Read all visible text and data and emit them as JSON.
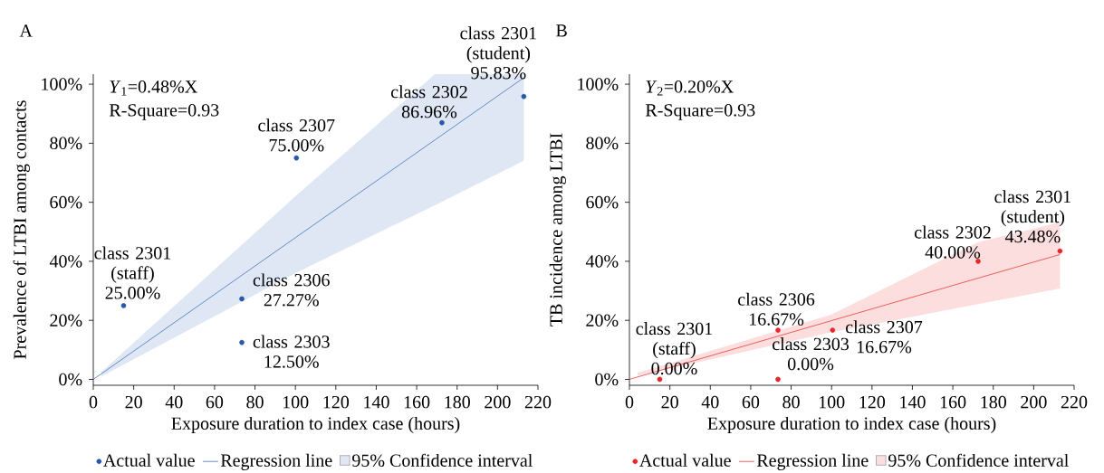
{
  "chart_data": [
    {
      "type": "scatter",
      "title": "A",
      "xlabel": "Exposure duration to index case (hours)",
      "ylabel": "Prevalence of LTBI among contacts",
      "xlim": [
        0,
        220
      ],
      "ylim": [
        -2,
        103.4
      ],
      "xticks": [
        0,
        20,
        40,
        60,
        80,
        100,
        120,
        140,
        160,
        180,
        200,
        220
      ],
      "yticks": [
        {
          "value": 0,
          "label": "0%"
        },
        {
          "value": 20,
          "label": "20%"
        },
        {
          "value": 40,
          "label": "40%"
        },
        {
          "value": 60,
          "label": "60%"
        },
        {
          "value": 80,
          "label": "80%"
        },
        {
          "value": 100,
          "label": "100%"
        }
      ],
      "legend": "bottom",
      "series": [
        {
          "name": "Actual value",
          "marker": "circle",
          "color": "#2a58a6",
          "x": [
            15,
            73.5,
            73.5,
            100.5,
            172.5,
            213
          ],
          "values": [
            25,
            27.27,
            12.5,
            75,
            86.96,
            95.83
          ]
        },
        {
          "name": "Regression line",
          "type": "line",
          "marker": "none",
          "line_style": "solid",
          "color": "#4472c4",
          "x": [
            0,
            4,
            100,
            169,
            213
          ],
          "values": [
            0,
            1.9,
            48,
            81.1,
            102.2
          ],
          "lower": [
            null,
            1,
            36,
            59,
            74.1
          ],
          "upper": [
            null,
            2.5,
            62,
            103.4,
            103.4
          ]
        }
      ],
      "annotations": [
        "*Y*$_{1}$=0.48%X",
        "R-Square=0.93",
        "95% Confidence interval",
        {
          "text": "class 2301 (staff) 25.00%",
          "x": 15,
          "y": 25
        },
        {
          "text": "class 2306 27.27%",
          "x": 73.5,
          "y": 27.27
        },
        {
          "text": "class 2303 12.50%",
          "x": 73.5,
          "y": 12.5
        },
        {
          "text": "class 2307 75.00%",
          "x": 100.5,
          "y": 75
        },
        {
          "text": "class 2302 86.96%",
          "x": 172.5,
          "y": 86.96
        },
        {
          "text": "class 2301 (student) 95.83%",
          "x": 213,
          "y": 95.83
        }
      ]
    },
    {
      "type": "scatter",
      "title": "B",
      "xlabel": "Exposure duration to index case (hours)",
      "ylabel": "TB incidence among LTBI",
      "xlim": [
        0,
        220
      ],
      "ylim": [
        -2,
        103.4
      ],
      "xticks": [
        0,
        20,
        40,
        60,
        80,
        100,
        120,
        140,
        160,
        180,
        200,
        220
      ],
      "yticks": [
        {
          "value": 0,
          "label": "0%"
        },
        {
          "value": 20,
          "label": "20%"
        },
        {
          "value": 40,
          "label": "40%"
        },
        {
          "value": 60,
          "label": "60%"
        },
        {
          "value": 80,
          "label": "80%"
        },
        {
          "value": 100,
          "label": "100%"
        }
      ],
      "legend": "bottom",
      "series": [
        {
          "name": "Actual value",
          "marker": "circle",
          "color": "#e8262a",
          "x": [
            15,
            73.5,
            73.5,
            100.5,
            172.5,
            213
          ],
          "values": [
            0,
            16.67,
            0,
            16.67,
            40,
            43.48
          ]
        },
        {
          "name": "Regression line",
          "type": "line",
          "marker": "none",
          "line_style": "solid",
          "color": "#ee3b3b",
          "x": [
            0,
            4,
            100,
            172.5,
            213
          ],
          "values": [
            0,
            0.8,
            19.9,
            34.3,
            42.3
          ],
          "lower": [
            null,
            1.2,
            16,
            25.5,
            30.8
          ],
          "upper": [
            null,
            2.2,
            22,
            46.5,
            53.2
          ]
        }
      ],
      "annotations": [
        "*Y*$_{2}$=0.20%X",
        "R-Square=0.93",
        "95% Confidence interval",
        {
          "text": "class 2301 (staff) 0.00%",
          "x": 15,
          "y": 0
        },
        {
          "text": "class 2306 16.67%",
          "x": 73.5,
          "y": 16.67
        },
        {
          "text": "class 2303 0.00%",
          "x": 73.5,
          "y": 0
        },
        {
          "text": "class 2307 16.67%",
          "x": 100.5,
          "y": 16.67
        },
        {
          "text": "class 2302 40.00%",
          "x": 172.5,
          "y": 40
        },
        {
          "text": "class 2301 (student) 43.48%",
          "x": 213,
          "y": 43.48
        }
      ]
    }
  ]
}
